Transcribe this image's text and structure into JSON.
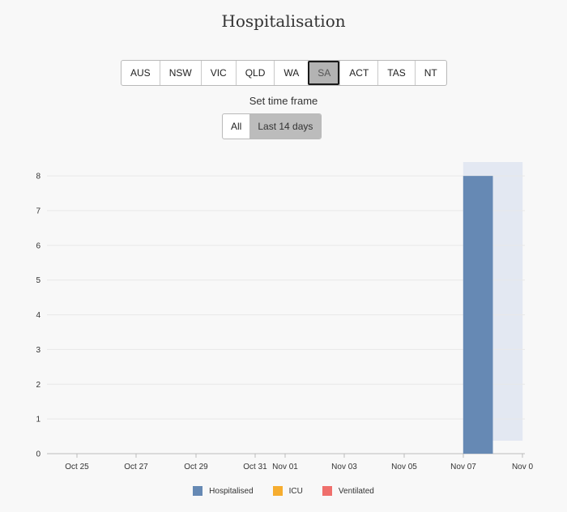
{
  "title": "Hospitalisation",
  "regions": [
    "AUS",
    "NSW",
    "VIC",
    "QLD",
    "WA",
    "SA",
    "ACT",
    "TAS",
    "NT"
  ],
  "active_region": "SA",
  "timeframe": {
    "label": "Set time frame",
    "options": [
      "All",
      "Last 14 days"
    ],
    "active": "Last 14 days"
  },
  "chart_data": {
    "type": "bar",
    "title": "Hospitalisation",
    "x_ticks": [
      "Oct 25",
      "Oct 27",
      "Oct 29",
      "Oct 31",
      "Nov 01",
      "Nov 03",
      "Nov 05",
      "Nov 07",
      "Nov 0"
    ],
    "y_ticks": [
      "0",
      "1",
      "2",
      "3",
      "4",
      "5",
      "6",
      "7",
      "8"
    ],
    "ylim": [
      0,
      8.4
    ],
    "grid": true,
    "legend_position": "bottom",
    "series": [
      {
        "name": "Hospitalised",
        "color": "#6689b4",
        "points": [
          {
            "x": "Nov 06",
            "y": 8
          }
        ]
      },
      {
        "name": "ICU",
        "color": "#f6ad2f",
        "points": []
      },
      {
        "name": "Ventilated",
        "color": "#ef6f6c",
        "points": []
      }
    ],
    "highlight": {
      "from": "Nov 06",
      "to": "Nov 08",
      "color": "#e3e8f2"
    }
  }
}
